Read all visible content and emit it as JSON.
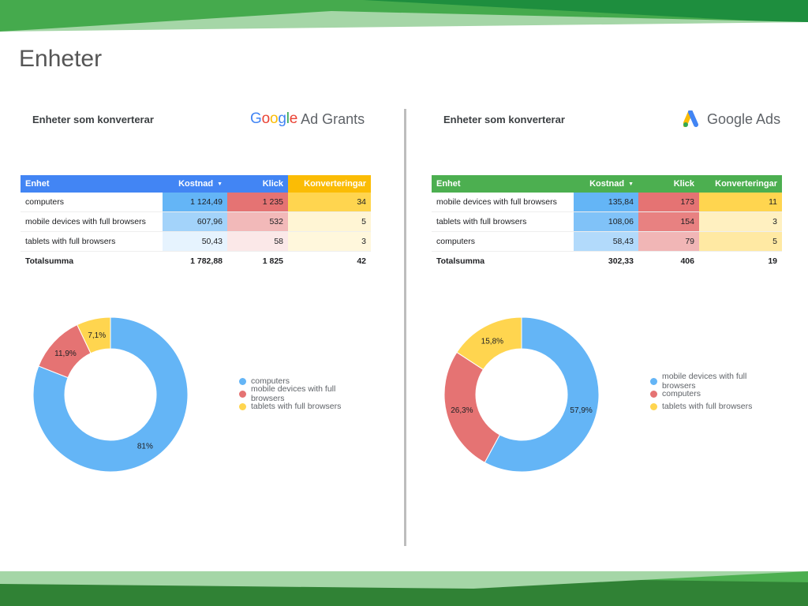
{
  "page": {
    "title": "Enheter"
  },
  "colors": {
    "series": [
      "#64b5f6",
      "#e57373",
      "#ffd54f"
    ],
    "header_blue": "#4285f4",
    "header_green": "#4caf50",
    "header_yellow": "#fbbc05"
  },
  "panels": [
    {
      "title": "Enheter som konverterar",
      "logo": {
        "type": "google-ad-grants",
        "brand": [
          "G",
          "o",
          "o",
          "g",
          "l",
          "e"
        ],
        "product": "Ad Grants"
      },
      "table": {
        "headers": [
          "Enhet",
          "Kostnad",
          "Klick",
          "Konverteringar"
        ],
        "sort_icon": "▼",
        "rows": [
          {
            "device": "computers",
            "cost": "1 124,49",
            "clicks": "1 235",
            "conversions": "34",
            "color_key": 0
          },
          {
            "device": "mobile devices with full browsers",
            "cost": "607,96",
            "clicks": "532",
            "conversions": "5",
            "color_key": 1
          },
          {
            "device": "tablets with full browsers",
            "cost": "50,43",
            "clicks": "58",
            "conversions": "3",
            "color_key": 2
          }
        ],
        "total": {
          "label": "Totalsumma",
          "cost": "1 782,88",
          "clicks": "1 825",
          "conversions": "42"
        },
        "heat": {
          "cost": [
            1124.49,
            607.96,
            50.43
          ],
          "clicks": [
            1235,
            532,
            58
          ],
          "conversions": [
            34,
            5,
            3
          ]
        }
      },
      "chart_data": {
        "type": "pie",
        "donut": true,
        "categories": [
          "computers",
          "mobile devices with full browsers",
          "tablets with full browsers"
        ],
        "values": [
          81,
          11.9,
          7.1
        ],
        "labels": [
          "81%",
          "11,9%",
          "7,1%"
        ],
        "legend_position": "right"
      }
    },
    {
      "title": "Enheter som konverterar",
      "logo": {
        "type": "google-ads",
        "product": "Google Ads"
      },
      "table": {
        "headers": [
          "Enhet",
          "Kostnad",
          "Klick",
          "Konverteringar"
        ],
        "sort_icon": "▼",
        "rows": [
          {
            "device": "mobile devices with full browsers",
            "cost": "135,84",
            "clicks": "173",
            "conversions": "11",
            "color_key": 0
          },
          {
            "device": "tablets with full browsers",
            "cost": "108,06",
            "clicks": "154",
            "conversions": "3",
            "color_key": 2
          },
          {
            "device": "computers",
            "cost": "58,43",
            "clicks": "79",
            "conversions": "5",
            "color_key": 1
          }
        ],
        "total": {
          "label": "Totalsumma",
          "cost": "302,33",
          "clicks": "406",
          "conversions": "19"
        },
        "heat": {
          "cost": [
            135.84,
            108.06,
            58.43
          ],
          "clicks": [
            173,
            154,
            79
          ],
          "conversions": [
            11,
            3,
            5
          ]
        }
      },
      "chart_data": {
        "type": "pie",
        "donut": true,
        "categories": [
          "mobile devices with full browsers",
          "computers",
          "tablets with full browsers"
        ],
        "values": [
          57.9,
          26.3,
          15.8
        ],
        "labels": [
          "57,9%",
          "26,3%",
          "15,8%"
        ],
        "legend_position": "right"
      }
    }
  ]
}
